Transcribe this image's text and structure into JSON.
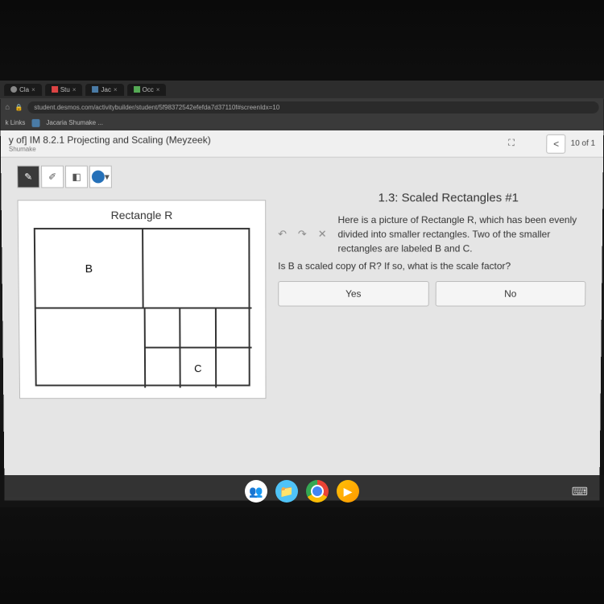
{
  "tabs": [
    {
      "icon_color": "#888",
      "label": "Cla",
      "suffix": "×"
    },
    {
      "icon_color": "#d44",
      "label": "Stu",
      "suffix": "×"
    },
    {
      "icon_color": "#4a7ba6",
      "label": "Jac",
      "suffix": "×"
    },
    {
      "icon_color": "#5a5",
      "label": "Occ",
      "suffix": "×"
    }
  ],
  "url": "student.desmos.com/activitybuilder/student/5f98372542efefda7d37110f#screenIdx=10",
  "bookmarks": [
    {
      "label": "k Links"
    },
    {
      "label": "Jacaria Shumake ..."
    }
  ],
  "header": {
    "title": "y of] IM 8.2.1 Projecting and Scaling (Meyzeek)",
    "author": "Shumake",
    "page_indicator": "10 of 1"
  },
  "section": {
    "title": "1.3: Scaled Rectangles #1",
    "rect_label": "Rectangle R",
    "cell_b": "B",
    "cell_c": "C"
  },
  "prompt": {
    "text": "Here is a picture of Rectangle R, which has been evenly divided into smaller rectangles. Two of the smaller rectangles are labeled B and C.",
    "question": "Is B a scaled copy of R? If so, what is the scale factor?",
    "yes": "Yes",
    "no": "No"
  },
  "colors": {
    "tool_color": "#2570b8",
    "toolbar_dark": "#3a3a3a"
  }
}
